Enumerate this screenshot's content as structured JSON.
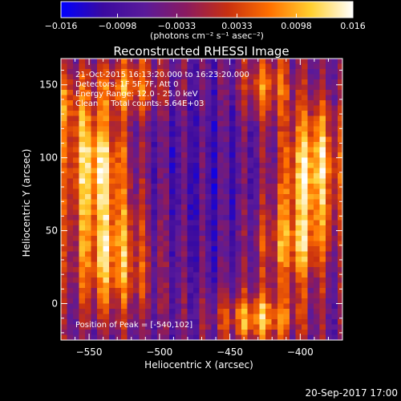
{
  "chart_data": {
    "type": "heatmap",
    "title": "Reconstructed RHESSI Image",
    "xlabel": "Heliocentric X (arcsec)",
    "ylabel": "Heliocentric Y (arcsec)",
    "xlim": [
      -570,
      -370
    ],
    "ylim": [
      -25,
      168
    ],
    "xticks": [
      -550,
      -500,
      -450,
      -400
    ],
    "xtick_labels": [
      "−550",
      "−500",
      "−450",
      "−400"
    ],
    "yticks": [
      0,
      50,
      100,
      150
    ],
    "yticks_labels": [
      "0",
      "50",
      "100",
      "150"
    ],
    "colorbar": {
      "min": -0.016,
      "max": 0.016,
      "tick_values": [
        -0.016,
        -0.0098,
        -0.0033,
        0.0033,
        0.0098,
        0.016
      ],
      "tick_labels": [
        "−0.016",
        "−0.0098",
        "−0.0033",
        "0.0033",
        "0.0098",
        "0.016"
      ],
      "unit_label": "(photons cm⁻² s⁻¹ asec⁻²)",
      "colors": [
        "#0000ff",
        "#3a0aa0",
        "#5a1a9a",
        "#8a1a60",
        "#c83010",
        "#ff7000",
        "#ffd030",
        "#ffffff"
      ]
    },
    "annotations": [
      "21-Oct-2015 16:13:20.000 to 16:23:20.000",
      "Detectors: 1F 5F 7F, Att 0",
      "Energy Range: 12.0 - 25.0 keV",
      "Clean     Total counts: 5.64E+03"
    ],
    "peak_label": "Position of Peak = [-540,102]",
    "peak": [
      -540,
      102
    ]
  },
  "footer": {
    "timestamp": "20-Sep-2017 17:00"
  }
}
